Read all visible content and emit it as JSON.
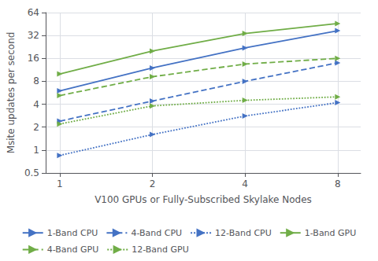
{
  "chart_data": {
    "type": "line",
    "xlabel": "V100 GPUs or Fully-Subscribed Skylake Nodes",
    "ylabel": "Msite updates per second",
    "x": [
      1,
      2,
      4,
      8
    ],
    "series": [
      {
        "name": "1-Band CPU",
        "color": "#4472C4",
        "line_style": "solid",
        "marker": "triangle-right",
        "values": [
          6.0,
          12.0,
          22.0,
          37.0
        ]
      },
      {
        "name": "4-Band CPU",
        "color": "#4472C4",
        "line_style": "dashed",
        "marker": "triangle-right",
        "values": [
          2.4,
          4.4,
          8.0,
          14.0
        ]
      },
      {
        "name": "12-Band CPU",
        "color": "#4472C4",
        "line_style": "dotted",
        "marker": "triangle-right",
        "values": [
          0.85,
          1.6,
          2.8,
          4.2
        ]
      },
      {
        "name": "1-Band GPU",
        "color": "#70AD47",
        "line_style": "solid",
        "marker": "triangle-right",
        "values": [
          10.0,
          20.0,
          34.0,
          46.0
        ]
      },
      {
        "name": "4-Band GPU",
        "color": "#70AD47",
        "line_style": "dashed",
        "marker": "triangle-right",
        "values": [
          5.2,
          9.2,
          13.5,
          16.0
        ]
      },
      {
        "name": "12-Band GPU",
        "color": "#70AD47",
        "line_style": "dotted",
        "marker": "triangle-right",
        "values": [
          2.2,
          3.8,
          4.5,
          5.0
        ]
      }
    ],
    "log": true,
    "xlim": [
      0.9,
      9.5
    ],
    "ylim": [
      0.5,
      64
    ],
    "xticks": [
      1,
      2,
      4,
      8
    ],
    "yticks": [
      0.5,
      1,
      2,
      4,
      8,
      16,
      32,
      64
    ],
    "grid": true,
    "legend": "bottom"
  }
}
